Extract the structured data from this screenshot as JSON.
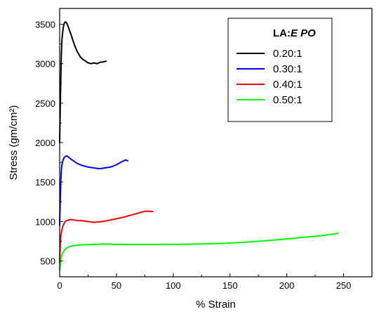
{
  "chart_data": {
    "type": "line",
    "xlabel": "% Strain",
    "ylabel": "Stress (gm/cm²)",
    "xlim": [
      0,
      275
    ],
    "ylim": [
      300,
      3700
    ],
    "x_ticks": [
      0,
      50,
      100,
      150,
      200,
      250
    ],
    "y_ticks": [
      500,
      1000,
      1500,
      2000,
      2500,
      3000,
      3500
    ],
    "legend": {
      "title_plain": "LA:",
      "title_italic": "E PO",
      "position": "top-right"
    },
    "grid": false,
    "series": [
      {
        "name": "0.20:1",
        "color": "#000000",
        "x": [
          0,
          0.5,
          1,
          1.5,
          2,
          3,
          4,
          5,
          6,
          7,
          8,
          10,
          12,
          14,
          16,
          18,
          20,
          22,
          25,
          28,
          30,
          33,
          36,
          38,
          40,
          41
        ],
        "y": [
          2000,
          2400,
          2800,
          3100,
          3300,
          3450,
          3510,
          3530,
          3520,
          3490,
          3450,
          3370,
          3280,
          3200,
          3140,
          3090,
          3060,
          3040,
          3010,
          3000,
          3010,
          3000,
          3020,
          3020,
          3030,
          3030
        ]
      },
      {
        "name": "0.30:1",
        "color": "#0000ff",
        "x": [
          0,
          0.5,
          1,
          1.5,
          2,
          3,
          4,
          5,
          6,
          7,
          8,
          10,
          12,
          15,
          18,
          20,
          25,
          30,
          35,
          38,
          40,
          45,
          50,
          55,
          58,
          60
        ],
        "y": [
          950,
          1250,
          1500,
          1650,
          1720,
          1780,
          1810,
          1825,
          1830,
          1825,
          1815,
          1790,
          1770,
          1740,
          1720,
          1710,
          1690,
          1680,
          1670,
          1675,
          1680,
          1690,
          1720,
          1760,
          1780,
          1770
        ]
      },
      {
        "name": "0.40:1",
        "color": "#ff0000",
        "x": [
          0,
          0.5,
          1,
          2,
          3,
          4,
          5,
          6,
          8,
          10,
          12,
          15,
          20,
          25,
          30,
          35,
          40,
          45,
          50,
          55,
          60,
          65,
          70,
          75,
          80,
          82
        ],
        "y": [
          480,
          700,
          820,
          900,
          950,
          980,
          1000,
          1010,
          1020,
          1025,
          1020,
          1015,
          1010,
          1000,
          990,
          995,
          1005,
          1020,
          1035,
          1050,
          1070,
          1090,
          1110,
          1130,
          1130,
          1125
        ]
      },
      {
        "name": "0.50:1",
        "color": "#00ff00",
        "x": [
          0,
          0.5,
          1,
          2,
          3,
          4,
          5,
          7,
          10,
          15,
          20,
          30,
          40,
          50,
          60,
          80,
          100,
          120,
          140,
          160,
          180,
          200,
          215,
          230,
          240,
          245
        ],
        "y": [
          380,
          450,
          520,
          580,
          610,
          630,
          650,
          670,
          690,
          700,
          705,
          710,
          715,
          710,
          710,
          710,
          710,
          715,
          720,
          735,
          755,
          780,
          800,
          820,
          840,
          850
        ]
      }
    ]
  }
}
